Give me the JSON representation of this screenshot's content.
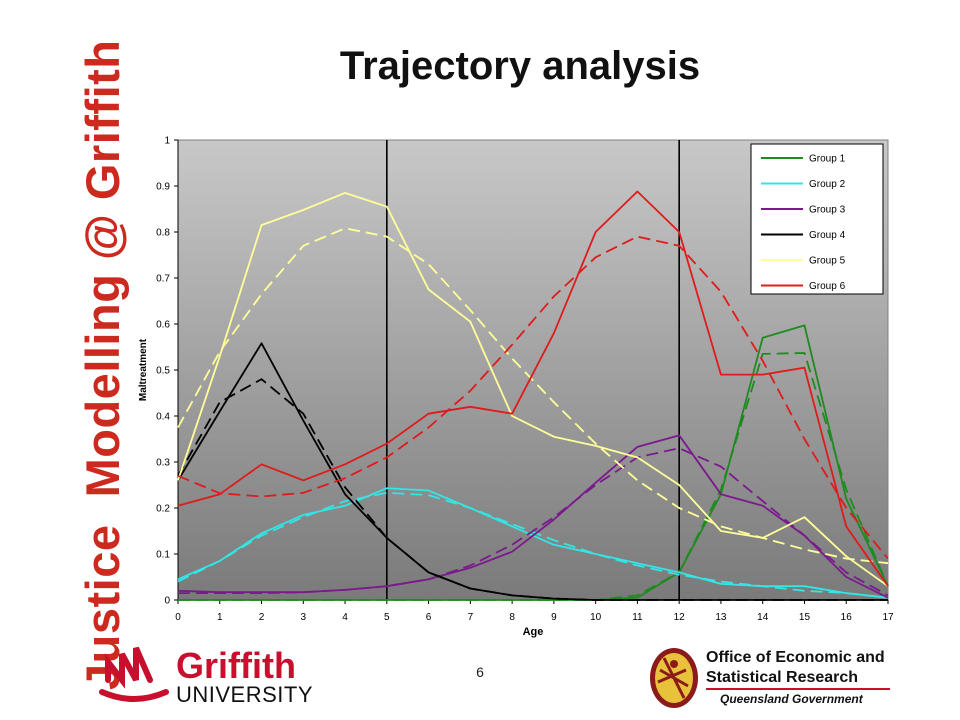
{
  "banner": {
    "word1": "Justice",
    "word2": "Modelling @",
    "word3": "Griffith"
  },
  "slide": {
    "title": "Trajectory analysis",
    "page_number": "6"
  },
  "logos": {
    "griffith_name": "Griffith",
    "griffith_sub": "UNIVERSITY",
    "oesr_line1": "Office of Economic and",
    "oesr_line2": "Statistical Research",
    "oesr_line3": "Queensland Government"
  },
  "colors": {
    "plot_top": "#c8c8c8",
    "plot_bottom": "#7a7a7a",
    "banner_red": "#cc2a1f",
    "griffith_red": "#c8102e"
  },
  "chart_data": {
    "type": "line",
    "xlabel": "Age",
    "ylabel": "Maltreatment",
    "x": [
      0,
      1,
      2,
      3,
      4,
      5,
      6,
      7,
      8,
      9,
      10,
      11,
      12,
      13,
      14,
      15,
      16,
      17
    ],
    "xlim": [
      0,
      17
    ],
    "ylim": [
      0,
      1
    ],
    "yticks": [
      0,
      0.1,
      0.2,
      0.3,
      0.4,
      0.5,
      0.6,
      0.7,
      0.8,
      0.9,
      1
    ],
    "ytick_labels": [
      "0",
      "0.1",
      "0.2",
      "0.3",
      "0.4",
      "0.5",
      "0.6",
      "0.7",
      "0.8",
      "0.9",
      "1"
    ],
    "vertical_markers": [
      5,
      12
    ],
    "legend_position": "top-right",
    "line_styles": {
      "observed": "solid",
      "predicted": "dashed"
    },
    "series": [
      {
        "name": "Group 1",
        "color": "#1f8a1f",
        "observed": [
          0,
          0,
          0,
          0,
          0,
          0,
          0,
          0,
          0,
          0,
          0,
          0.005,
          0.06,
          0.23,
          0.57,
          0.597,
          0.22,
          0.03
        ],
        "predicted": [
          0,
          0,
          0,
          0,
          0,
          0,
          0,
          0,
          0,
          0,
          0,
          0.01,
          0.06,
          0.24,
          0.535,
          0.537,
          0.24,
          0.03
        ]
      },
      {
        "name": "Group 2",
        "color": "#33e5e5",
        "observed": [
          0.045,
          0.085,
          0.145,
          0.185,
          0.205,
          0.243,
          0.238,
          0.2,
          0.16,
          0.12,
          0.1,
          0.08,
          0.06,
          0.035,
          0.03,
          0.03,
          0.015,
          0.005
        ],
        "predicted": [
          0.04,
          0.085,
          0.14,
          0.18,
          0.215,
          0.233,
          0.228,
          0.2,
          0.165,
          0.13,
          0.1,
          0.075,
          0.055,
          0.04,
          0.03,
          0.02,
          0.015,
          0.005
        ]
      },
      {
        "name": "Group 3",
        "color": "#7a1a8c",
        "observed": [
          0.02,
          0.017,
          0.017,
          0.017,
          0.022,
          0.03,
          0.045,
          0.07,
          0.105,
          0.175,
          0.255,
          0.333,
          0.358,
          0.23,
          0.205,
          0.14,
          0.05,
          0.005
        ],
        "predicted": [
          0.015,
          0.015,
          0.015,
          0.017,
          0.022,
          0.03,
          0.045,
          0.075,
          0.12,
          0.18,
          0.25,
          0.31,
          0.33,
          0.29,
          0.215,
          0.14,
          0.06,
          0.01
        ]
      },
      {
        "name": "Group 4",
        "color": "#000000",
        "observed": [
          0.26,
          0.41,
          0.558,
          0.39,
          0.23,
          0.135,
          0.06,
          0.025,
          0.01,
          0.003,
          0,
          0,
          0,
          0,
          0,
          0,
          0,
          0
        ],
        "predicted": [
          0.27,
          0.43,
          0.48,
          0.405,
          0.245,
          0.135,
          0.06,
          0.025,
          0.01,
          0.003,
          0,
          0,
          0,
          0,
          0,
          0,
          0,
          0
        ]
      },
      {
        "name": "Group 5",
        "color": "#ffff99",
        "observed": [
          0.26,
          0.53,
          0.815,
          0.848,
          0.885,
          0.855,
          0.675,
          0.605,
          0.4,
          0.355,
          0.335,
          0.31,
          0.25,
          0.15,
          0.135,
          0.18,
          0.095,
          0.03
        ],
        "predicted": [
          0.375,
          0.54,
          0.665,
          0.77,
          0.808,
          0.79,
          0.73,
          0.63,
          0.525,
          0.43,
          0.34,
          0.26,
          0.2,
          0.16,
          0.135,
          0.11,
          0.09,
          0.08
        ]
      },
      {
        "name": "Group 6",
        "color": "#e01b1b",
        "observed": [
          0.205,
          0.23,
          0.295,
          0.26,
          0.295,
          0.34,
          0.405,
          0.42,
          0.405,
          0.58,
          0.8,
          0.888,
          0.8,
          0.49,
          0.49,
          0.505,
          0.16,
          0.03
        ],
        "predicted": [
          0.27,
          0.232,
          0.225,
          0.233,
          0.265,
          0.31,
          0.375,
          0.455,
          0.555,
          0.66,
          0.745,
          0.79,
          0.77,
          0.67,
          0.52,
          0.35,
          0.2,
          0.09
        ]
      }
    ]
  }
}
